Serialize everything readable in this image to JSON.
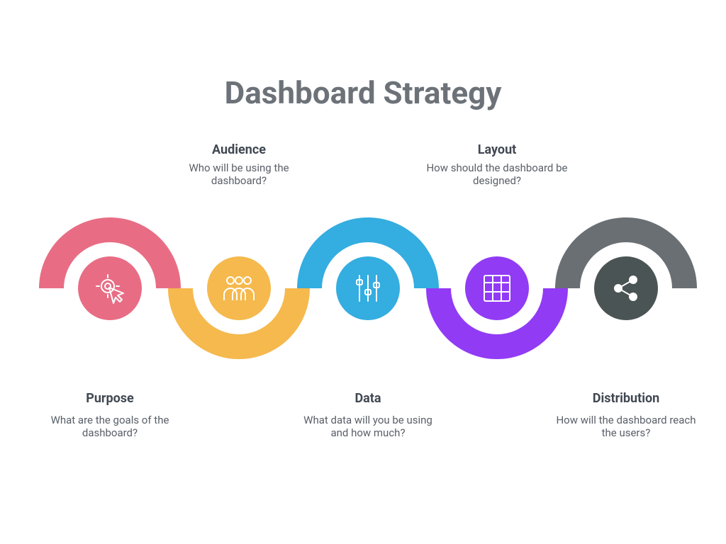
{
  "background_color": "#ffffff",
  "title": {
    "text": "Dashboard Strategy",
    "color": "#6c7278",
    "fontsize": 44,
    "fontweight": 700
  },
  "infographic": {
    "type": "infographic",
    "layout": "serpentine-ribbon",
    "arc_outer_radius": 100,
    "arc_inner_radius": 65,
    "icon_circle_diameter": 90,
    "icon_stroke_color": "#ffffff",
    "step_heading_color": "#414852",
    "step_heading_fontsize": 18,
    "step_heading_fontweight": 700,
    "step_desc_color": "#5a6069",
    "step_desc_fontsize": 15,
    "steps": [
      {
        "key": "purpose",
        "heading": "Purpose",
        "desc": "What are the goals of the dashboard?",
        "arc_color": "#e86d84",
        "icon_bg": "#e86d84",
        "icon": "cursor-click-icon",
        "arc_direction": "up",
        "text_position": "below"
      },
      {
        "key": "audience",
        "heading": "Audience",
        "desc": "Who will be using the dashboard?",
        "arc_color": "#f5b94d",
        "icon_bg": "#f5b94d",
        "icon": "people-icon",
        "arc_direction": "down",
        "text_position": "above"
      },
      {
        "key": "data",
        "heading": "Data",
        "desc": "What data will you be using and how much?",
        "arc_color": "#34ade0",
        "icon_bg": "#34ade0",
        "icon": "sliders-icon",
        "arc_direction": "up",
        "text_position": "below"
      },
      {
        "key": "layout",
        "heading": "Layout",
        "desc": "How should the dashboard be designed?",
        "arc_color": "#913bf5",
        "icon_bg": "#913bf5",
        "icon": "grid-icon",
        "arc_direction": "down",
        "text_position": "above"
      },
      {
        "key": "distribution",
        "heading": "Distribution",
        "desc": "How will the dashboard reach the users?",
        "arc_color": "#6a6f73",
        "icon_bg": "#4b5455",
        "icon": "share-icon",
        "arc_direction": "up",
        "text_position": "below"
      }
    ]
  }
}
